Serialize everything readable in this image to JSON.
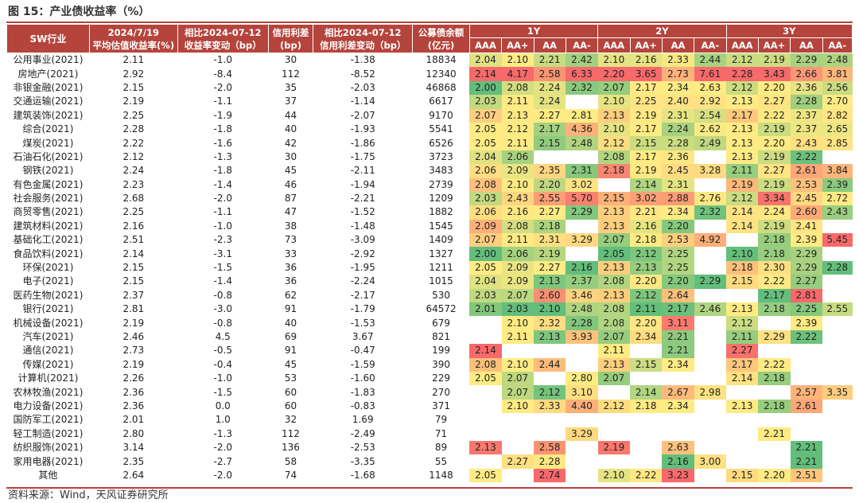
{
  "figure_title": "图 15：产业债收益率（%）",
  "source": "资料来源：Wind，天风证券研究所",
  "header": {
    "industry": "SW行业",
    "yield_date": "2024/7/19",
    "yield_label": "平均估值收益率(%)",
    "yield_chg_date": "相比2024-07-12",
    "yield_chg_label": "收益率变动（bp）",
    "spread_title": "信用利差",
    "spread_unit": "(bp)",
    "spread_chg_date": "相比2024-07-12",
    "spread_chg_label": "信用利差变动（bp）",
    "balance_title": "公募债余额",
    "balance_unit": "(亿元)",
    "tenors": [
      "1Y",
      "2Y",
      "3Y"
    ],
    "ratings": [
      "AAA",
      "AA+",
      "AA",
      "AA-"
    ]
  },
  "colors": {
    "header_bg": "#b5443c",
    "rule": "#b5443c",
    "scale_low": "#63be7b",
    "scale_mid": "#ffeb84",
    "scale_high": "#f8696b"
  },
  "rows": [
    {
      "industry": "公用事业(2021)",
      "yield": "2.11",
      "yield_chg": "-1.0",
      "spread": "30",
      "spread_chg": "-1.38",
      "balance": "18834",
      "y1": [
        "2.04",
        "2.10",
        "2.21",
        "2.42"
      ],
      "y2": [
        "2.10",
        "2.16",
        "2.33",
        "2.44"
      ],
      "y3": [
        "2.12",
        "2.19",
        "2.29",
        "2.48"
      ]
    },
    {
      "industry": "房地产(2021)",
      "yield": "2.92",
      "yield_chg": "-8.4",
      "spread": "112",
      "spread_chg": "-8.52",
      "balance": "12340",
      "y1": [
        "2.14",
        "4.17",
        "2.58",
        "6.33"
      ],
      "y2": [
        "2.20",
        "3.65",
        "2.73",
        "7.61"
      ],
      "y3": [
        "2.28",
        "3.43",
        "2.66",
        "3.81"
      ]
    },
    {
      "industry": "非银金融(2021)",
      "yield": "2.15",
      "yield_chg": "-2.0",
      "spread": "35",
      "spread_chg": "-2.03",
      "balance": "46868",
      "y1": [
        "2.00",
        "2.08",
        "2.24",
        "2.32"
      ],
      "y2": [
        "2.07",
        "2.17",
        "2.34",
        "2.63"
      ],
      "y3": [
        "2.12",
        "2.20",
        "2.36",
        "2.56"
      ]
    },
    {
      "industry": "交通运输(2021)",
      "yield": "2.19",
      "yield_chg": "-1.1",
      "spread": "37",
      "spread_chg": "-1.14",
      "balance": "6617",
      "y1": [
        "2.03",
        "2.11",
        "2.24",
        ""
      ],
      "y2": [
        "2.10",
        "2.25",
        "2.40",
        "2.92"
      ],
      "y3": [
        "2.13",
        "2.27",
        "2.28",
        "2.70"
      ]
    },
    {
      "industry": "建筑装饰(2021)",
      "yield": "2.25",
      "yield_chg": "-1.9",
      "spread": "44",
      "spread_chg": "-2.07",
      "balance": "9170",
      "y1": [
        "2.07",
        "2.13",
        "2.27",
        "2.81"
      ],
      "y2": [
        "2.13",
        "2.19",
        "2.31",
        "2.54"
      ],
      "y3": [
        "2.17",
        "2.22",
        "2.37",
        "2.82"
      ]
    },
    {
      "industry": "综合(2021)",
      "yield": "2.28",
      "yield_chg": "-1.8",
      "spread": "40",
      "spread_chg": "-1.93",
      "balance": "5541",
      "y1": [
        "2.05",
        "2.12",
        "2.17",
        "4.36"
      ],
      "y2": [
        "2.10",
        "2.17",
        "2.24",
        "2.62"
      ],
      "y3": [
        "2.13",
        "2.19",
        "2.37",
        "2.65"
      ]
    },
    {
      "industry": "煤炭(2021)",
      "yield": "2.22",
      "yield_chg": "-1.6",
      "spread": "42",
      "spread_chg": "-1.86",
      "balance": "6526",
      "y1": [
        "2.05",
        "2.11",
        "2.15",
        "2.48"
      ],
      "y2": [
        "2.12",
        "2.15",
        "2.28",
        "2.49"
      ],
      "y3": [
        "2.13",
        "2.20",
        "2.43",
        "2.85"
      ]
    },
    {
      "industry": "石油石化(2021)",
      "yield": "2.12",
      "yield_chg": "-1.3",
      "spread": "30",
      "spread_chg": "-1.75",
      "balance": "3723",
      "y1": [
        "2.04",
        "2.06",
        "",
        ""
      ],
      "y2": [
        "2.08",
        "2.17",
        "2.36",
        ""
      ],
      "y3": [
        "2.13",
        "2.19",
        "2.22",
        ""
      ]
    },
    {
      "industry": "钢铁(2021)",
      "yield": "2.24",
      "yield_chg": "-1.8",
      "spread": "45",
      "spread_chg": "-2.11",
      "balance": "3483",
      "y1": [
        "2.06",
        "2.09",
        "2.35",
        "2.31"
      ],
      "y2": [
        "2.18",
        "2.19",
        "2.45",
        "3.28"
      ],
      "y3": [
        "2.11",
        "2.27",
        "2.61",
        "3.84"
      ]
    },
    {
      "industry": "有色金属(2021)",
      "yield": "2.23",
      "yield_chg": "-1.4",
      "spread": "46",
      "spread_chg": "-1.94",
      "balance": "2739",
      "y1": [
        "2.08",
        "2.10",
        "2.20",
        "3.02"
      ],
      "y2": [
        "",
        "2.14",
        "2.31",
        ""
      ],
      "y3": [
        "2.19",
        "2.19",
        "2.53",
        "2.39"
      ]
    },
    {
      "industry": "社会服务(2021)",
      "yield": "2.68",
      "yield_chg": "-2.0",
      "spread": "87",
      "spread_chg": "-2.21",
      "balance": "1209",
      "y1": [
        "2.03",
        "2.43",
        "2.55",
        "5.70"
      ],
      "y2": [
        "2.15",
        "3.02",
        "2.88",
        "2.76"
      ],
      "y3": [
        "2.12",
        "3.34",
        "2.45",
        "2.72"
      ]
    },
    {
      "industry": "商贸零售(2021)",
      "yield": "2.25",
      "yield_chg": "-1.1",
      "spread": "47",
      "spread_chg": "-1.52",
      "balance": "1882",
      "y1": [
        "2.06",
        "2.16",
        "2.27",
        "2.29"
      ],
      "y2": [
        "2.13",
        "2.21",
        "2.34",
        "2.32"
      ],
      "y3": [
        "2.14",
        "2.24",
        "2.60",
        "2.43"
      ]
    },
    {
      "industry": "建筑材料(2021)",
      "yield": "2.16",
      "yield_chg": "-1.0",
      "spread": "38",
      "spread_chg": "-1.48",
      "balance": "1545",
      "y1": [
        "2.09",
        "2.08",
        "2.18",
        ""
      ],
      "y2": [
        "2.13",
        "2.16",
        "2.20",
        ""
      ],
      "y3": [
        "2.14",
        "2.19",
        "2.41",
        ""
      ]
    },
    {
      "industry": "基础化工(2021)",
      "yield": "2.51",
      "yield_chg": "-2.3",
      "spread": "73",
      "spread_chg": "-3.09",
      "balance": "1409",
      "y1": [
        "2.07",
        "2.11",
        "2.31",
        "3.29"
      ],
      "y2": [
        "2.07",
        "2.18",
        "2.53",
        "4.92"
      ],
      "y3": [
        "",
        "2.18",
        "2.39",
        "5.45"
      ]
    },
    {
      "industry": "食品饮料(2021)",
      "yield": "2.14",
      "yield_chg": "-3.1",
      "spread": "33",
      "spread_chg": "-2.92",
      "balance": "1327",
      "y1": [
        "2.00",
        "2.06",
        "2.19",
        ""
      ],
      "y2": [
        "2.05",
        "2.12",
        "2.25",
        ""
      ],
      "y3": [
        "2.10",
        "2.18",
        "2.29",
        ""
      ]
    },
    {
      "industry": "环保(2021)",
      "yield": "2.15",
      "yield_chg": "-1.5",
      "spread": "36",
      "spread_chg": "-1.95",
      "balance": "1211",
      "y1": [
        "2.05",
        "2.09",
        "2.27",
        "2.16"
      ],
      "y2": [
        "2.13",
        "2.13",
        "2.25",
        ""
      ],
      "y3": [
        "2.18",
        "2.30",
        "2.29",
        "2.28"
      ]
    },
    {
      "industry": "电子(2021)",
      "yield": "2.15",
      "yield_chg": "-1.4",
      "spread": "36",
      "spread_chg": "-2.24",
      "balance": "1015",
      "y1": [
        "2.04",
        "2.09",
        "2.13",
        "2.37"
      ],
      "y2": [
        "2.08",
        "2.20",
        "2.20",
        "2.29"
      ],
      "y3": [
        "2.15",
        "2.22",
        "2.27",
        ""
      ]
    },
    {
      "industry": "医药生物(2021)",
      "yield": "2.37",
      "yield_chg": "-0.8",
      "spread": "62",
      "spread_chg": "-2.17",
      "balance": "530",
      "y1": [
        "2.03",
        "2.07",
        "2.60",
        "3.46"
      ],
      "y2": [
        "2.13",
        "2.12",
        "2.64",
        ""
      ],
      "y3": [
        "",
        "2.17",
        "2.81",
        ""
      ]
    },
    {
      "industry": "银行(2021)",
      "yield": "2.81",
      "yield_chg": "-3.0",
      "spread": "91",
      "spread_chg": "-1.79",
      "balance": "64572",
      "y1": [
        "2.01",
        "2.03",
        "2.10",
        "2.48"
      ],
      "y2": [
        "2.08",
        "2.11",
        "2.17",
        "2.46"
      ],
      "y3": [
        "2.13",
        "2.18",
        "2.25",
        "2.55"
      ]
    },
    {
      "industry": "机械设备(2021)",
      "yield": "2.19",
      "yield_chg": "-0.8",
      "spread": "40",
      "spread_chg": "-1.53",
      "balance": "679",
      "y1": [
        "",
        "2.10",
        "2.32",
        "2.28"
      ],
      "y2": [
        "2.08",
        "2.20",
        "3.11",
        ""
      ],
      "y3": [
        "2.12",
        "",
        "2.39",
        ""
      ]
    },
    {
      "industry": "汽车(2021)",
      "yield": "2.46",
      "yield_chg": "4.5",
      "spread": "69",
      "spread_chg": "3.67",
      "balance": "821",
      "y1": [
        "",
        "2.11",
        "2.13",
        "3.93"
      ],
      "y2": [
        "2.07",
        "2.34",
        "2.21",
        ""
      ],
      "y3": [
        "2.11",
        "2.29",
        "2.22",
        ""
      ]
    },
    {
      "industry": "通信(2021)",
      "yield": "2.73",
      "yield_chg": "-0.5",
      "spread": "91",
      "spread_chg": "-0.47",
      "balance": "199",
      "y1": [
        "2.14",
        "",
        "",
        ""
      ],
      "y2": [
        "2.11",
        "",
        "2.21",
        ""
      ],
      "y3": [
        "2.27",
        "",
        "",
        ""
      ]
    },
    {
      "industry": "传媒(2021)",
      "yield": "2.19",
      "yield_chg": "-0.4",
      "spread": "45",
      "spread_chg": "-1.59",
      "balance": "390",
      "y1": [
        "2.08",
        "2.10",
        "2.44",
        ""
      ],
      "y2": [
        "2.13",
        "2.15",
        "2.34",
        ""
      ],
      "y3": [
        "2.17",
        "2.22",
        "",
        ""
      ]
    },
    {
      "industry": "计算机(2021)",
      "yield": "2.26",
      "yield_chg": "-1.0",
      "spread": "53",
      "spread_chg": "-1.60",
      "balance": "229",
      "y1": [
        "2.05",
        "2.07",
        "",
        "2.80"
      ],
      "y2": [
        "2.07",
        "",
        "",
        ""
      ],
      "y3": [
        "2.14",
        "2.18",
        "",
        ""
      ]
    },
    {
      "industry": "农林牧渔(2021)",
      "yield": "2.36",
      "yield_chg": "-1.5",
      "spread": "60",
      "spread_chg": "-1.83",
      "balance": "270",
      "y1": [
        "",
        "2.07",
        "2.12",
        "3.10"
      ],
      "y2": [
        "",
        "2.14",
        "2.67",
        "2.98"
      ],
      "y3": [
        "",
        "",
        "2.57",
        "3.35"
      ]
    },
    {
      "industry": "电力设备(2021)",
      "yield": "2.36",
      "yield_chg": "0.0",
      "spread": "60",
      "spread_chg": "-0.83",
      "balance": "371",
      "y1": [
        "",
        "2.10",
        "2.33",
        "4.40"
      ],
      "y2": [
        "2.12",
        "2.18",
        "2.34",
        ""
      ],
      "y3": [
        "2.13",
        "2.18",
        "2.61",
        ""
      ]
    },
    {
      "industry": "国防军工(2021)",
      "yield": "2.01",
      "yield_chg": "1.0",
      "spread": "32",
      "spread_chg": "1.69",
      "balance": "79",
      "y1": [
        "",
        "",
        "",
        ""
      ],
      "y2": [
        "",
        "",
        "",
        ""
      ],
      "y3": [
        "",
        "",
        "",
        ""
      ]
    },
    {
      "industry": "轻工制造(2021)",
      "yield": "2.80",
      "yield_chg": "-1.3",
      "spread": "112",
      "spread_chg": "-2.49",
      "balance": "71",
      "y1": [
        "",
        "",
        "",
        "3.29"
      ],
      "y2": [
        "",
        "",
        "",
        ""
      ],
      "y3": [
        "",
        "2.21",
        "",
        ""
      ]
    },
    {
      "industry": "纺织服饰(2021)",
      "yield": "3.14",
      "yield_chg": "-2.0",
      "spread": "136",
      "spread_chg": "-2.53",
      "balance": "89",
      "y1": [
        "2.13",
        "",
        "2.58",
        ""
      ],
      "y2": [
        "2.19",
        "",
        "2.63",
        ""
      ],
      "y3": [
        "",
        "",
        "2.21",
        ""
      ]
    },
    {
      "industry": "家用电器(2021)",
      "yield": "2.35",
      "yield_chg": "-2.7",
      "spread": "58",
      "spread_chg": "-3.35",
      "balance": "55",
      "y1": [
        "",
        "2.27",
        "2.28",
        ""
      ],
      "y2": [
        "",
        "",
        "2.16",
        "3.00"
      ],
      "y3": [
        "",
        "",
        "2.21",
        ""
      ]
    },
    {
      "industry": "其他",
      "yield": "2.64",
      "yield_chg": "-2.0",
      "spread": "74",
      "spread_chg": "-1.68",
      "balance": "1148",
      "y1": [
        "2.05",
        "",
        "2.74",
        ""
      ],
      "y2": [
        "2.10",
        "2.22",
        "3.23",
        ""
      ],
      "y3": [
        "2.15",
        "2.20",
        "2.51",
        ""
      ]
    }
  ]
}
